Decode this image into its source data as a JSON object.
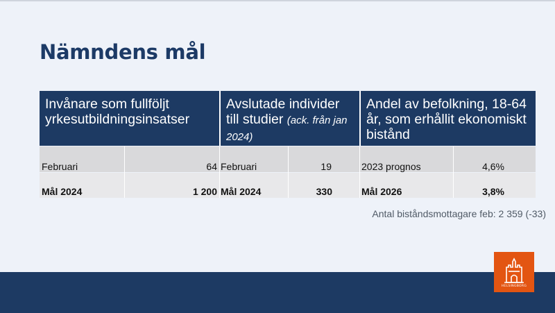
{
  "title": "Nämndens mål",
  "columns": [
    {
      "header": "Invånare som fullföljt yrkesutbildningsinsatser",
      "rows": [
        {
          "label": "Februari",
          "value": "64"
        },
        {
          "label": "Mål 2024",
          "value": "1 200"
        }
      ]
    },
    {
      "header_line1": "Avslutade individer",
      "header_line2": "till studier",
      "header_note": "(ack. från jan 2024)",
      "rows": [
        {
          "label": "Februari",
          "value": "19"
        },
        {
          "label": "Mål 2024",
          "value": "330"
        }
      ]
    },
    {
      "header": "Andel av befolkning, 18-64 år, som erhållit ekonomiskt bistånd",
      "rows": [
        {
          "label": "2023 prognos",
          "value": "4,6%"
        },
        {
          "label": "Mål 2026",
          "value": "3,8%"
        }
      ]
    }
  ],
  "footnote": "Antal biståndsmottagare feb: 2 359 (-33)",
  "logo": {
    "text": "HELSINGBORG",
    "color": "#e35512",
    "icon": "castle-icon"
  },
  "colors": {
    "header_bg": "#1d3a63",
    "title": "#1c3a66",
    "row1_bg": "#d9d9db",
    "row2_bg": "#e8e8ea"
  }
}
